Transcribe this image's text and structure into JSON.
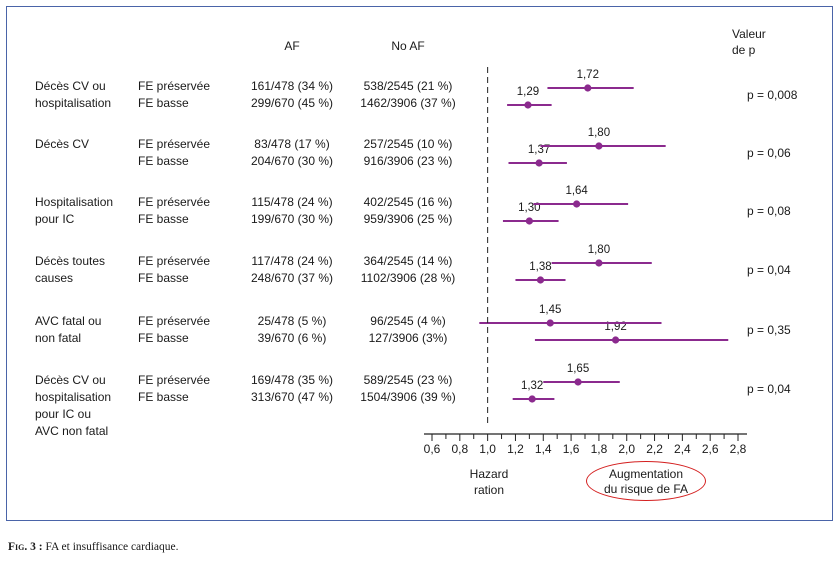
{
  "headers": {
    "af": "AF",
    "no_af": "No AF",
    "p_value": "Valeur\nde p",
    "p_value_line1": "Valeur",
    "p_value_line2": "de p"
  },
  "groups": [
    {
      "label": [
        "Décès CV ou",
        "hospitalisation"
      ],
      "p": "p = 0,008",
      "rows": [
        {
          "sub": "FE préservée",
          "af": "161/478 (34 %)",
          "no_af": "538/2545 (21 %)",
          "hr": 1.72,
          "hr_label": "1,72",
          "ci": [
            1.43,
            2.05
          ]
        },
        {
          "sub": "FE basse",
          "af": "299/670 (45 %)",
          "no_af": "1462/3906 (37 %)",
          "hr": 1.29,
          "hr_label": "1,29",
          "ci": [
            1.14,
            1.46
          ]
        }
      ]
    },
    {
      "label": [
        "Décès CV"
      ],
      "p": "p = 0,06",
      "rows": [
        {
          "sub": "FE préservée",
          "af": "83/478 (17 %)",
          "no_af": "257/2545 (10 %)",
          "hr": 1.8,
          "hr_label": "1,80",
          "ci": [
            1.38,
            2.28
          ]
        },
        {
          "sub": "FE basse",
          "af": "204/670 (30 %)",
          "no_af": "916/3906 (23 %)",
          "hr": 1.37,
          "hr_label": "1,37",
          "ci": [
            1.15,
            1.57
          ]
        }
      ]
    },
    {
      "label": [
        "Hospitalisation",
        "pour IC"
      ],
      "p": "p = 0,08",
      "rows": [
        {
          "sub": "FE préservée",
          "af": "115/478 (24 %)",
          "no_af": "402/2545 (16 %)",
          "hr": 1.64,
          "hr_label": "1,64",
          "ci": [
            1.33,
            2.01
          ]
        },
        {
          "sub": "FE basse",
          "af": "199/670 (30 %)",
          "no_af": "959/3906 (25 %)",
          "hr": 1.3,
          "hr_label": "1,30",
          "ci": [
            1.11,
            1.51
          ]
        }
      ]
    },
    {
      "label": [
        "Décès toutes",
        "causes"
      ],
      "p": "p = 0,04",
      "rows": [
        {
          "sub": "FE préservée",
          "af": "117/478 (24 %)",
          "no_af": "364/2545 (14 %)",
          "hr": 1.8,
          "hr_label": "1,80",
          "ci": [
            1.46,
            2.18
          ]
        },
        {
          "sub": "FE basse",
          "af": "248/670 (37 %)",
          "no_af": "1102/3906 (28 %)",
          "hr": 1.38,
          "hr_label": "1,38",
          "ci": [
            1.2,
            1.56
          ]
        }
      ]
    },
    {
      "label": [
        "AVC fatal ou",
        "non fatal"
      ],
      "p": "p = 0,35",
      "rows": [
        {
          "sub": "FE préservée",
          "af": "25/478 (5 %)",
          "no_af": "96/2545 (4 %)",
          "hr": 1.45,
          "hr_label": "1,45",
          "ci": [
            0.94,
            2.25
          ]
        },
        {
          "sub": "FE basse",
          "af": "39/670 (6 %)",
          "no_af": "127/3906 (3%)",
          "hr": 1.92,
          "hr_label": "1,92",
          "ci": [
            1.34,
            2.73
          ]
        }
      ]
    },
    {
      "label": [
        "Décès CV ou",
        "hospitalisation",
        "pour IC ou",
        "AVC non fatal"
      ],
      "p": "p = 0,04",
      "rows": [
        {
          "sub": "FE préservée",
          "af": "169/478 (35 %)",
          "no_af": "589/2545 (23 %)",
          "hr": 1.65,
          "hr_label": "1,65",
          "ci": [
            1.4,
            1.95
          ]
        },
        {
          "sub": "FE basse",
          "af": "313/670 (47 %)",
          "no_af": "1504/3906 (39 %)",
          "hr": 1.32,
          "hr_label": "1,32",
          "ci": [
            1.18,
            1.48
          ]
        }
      ]
    }
  ],
  "chart_data": {
    "type": "forest",
    "xlabel": "Hazard ration",
    "xlim": [
      0.6,
      2.8
    ],
    "ticks": [
      0.6,
      0.8,
      1.0,
      1.2,
      1.4,
      1.6,
      1.8,
      2.0,
      2.2,
      2.4,
      2.6,
      2.8
    ],
    "tick_labels": [
      "0,6",
      "0,8",
      "1,0",
      "1,2",
      "1,4",
      "1,6",
      "1,8",
      "2,0",
      "2,2",
      "2,4",
      "2,6",
      "2,8"
    ],
    "reference_line": 1.0,
    "annotation": "Augmentation du risque de FA",
    "annotation_line1": "Augmentation",
    "annotation_line2": "du risque de FA",
    "xlabel_line1": "Hazard",
    "xlabel_line2": "ration",
    "marker_color": "#8b2a8e"
  },
  "caption": {
    "fig": "Fig. 3 :",
    "text": " FA et insuffisance cardiaque."
  }
}
